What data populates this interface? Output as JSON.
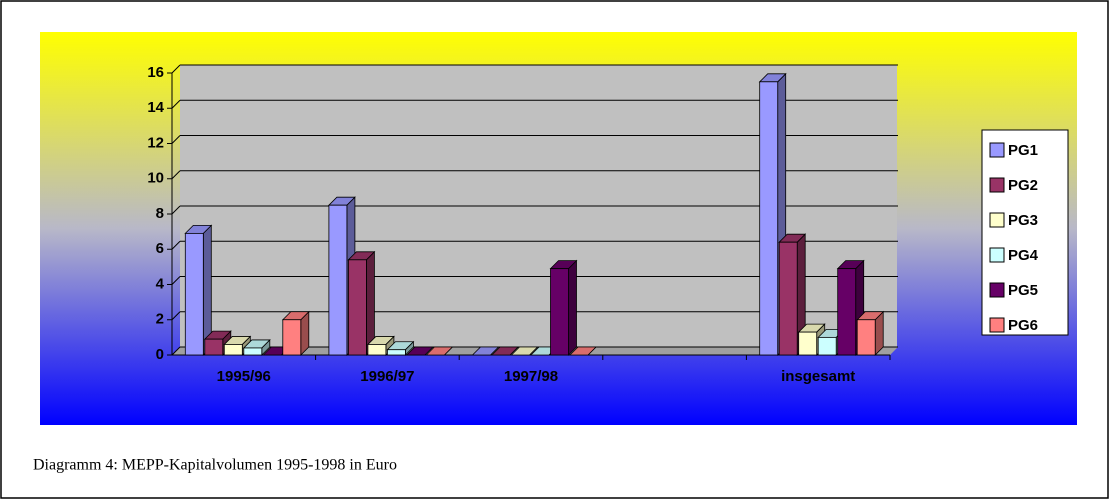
{
  "chart_data": {
    "type": "bar",
    "caption": "Diagramm 4: MEPP-Kapitalvolumen 1995-1998 in Euro",
    "categories": [
      "1995/96",
      "1996/97",
      "1997/98",
      null,
      "insgesamt"
    ],
    "series": [
      {
        "name": "PG1",
        "color": "#9999ff",
        "values": [
          6.9,
          8.5,
          0,
          null,
          15.5
        ]
      },
      {
        "name": "PG2",
        "color": "#993366",
        "values": [
          0.9,
          5.4,
          0,
          null,
          6.4
        ]
      },
      {
        "name": "PG3",
        "color": "#ffffcc",
        "values": [
          0.6,
          0.6,
          0,
          null,
          1.3
        ]
      },
      {
        "name": "PG4",
        "color": "#ccffff",
        "values": [
          0.4,
          0.3,
          0,
          null,
          1.0
        ]
      },
      {
        "name": "PG5",
        "color": "#660066",
        "values": [
          0,
          0,
          4.9,
          null,
          4.9
        ]
      },
      {
        "name": "PG6",
        "color": "#ff8080",
        "values": [
          2.0,
          0,
          0,
          null,
          2.0
        ]
      }
    ],
    "ylim": [
      0,
      16
    ],
    "yticks": [
      0,
      2,
      4,
      6,
      8,
      10,
      12,
      14,
      16
    ],
    "grid": true,
    "legend": "right"
  }
}
